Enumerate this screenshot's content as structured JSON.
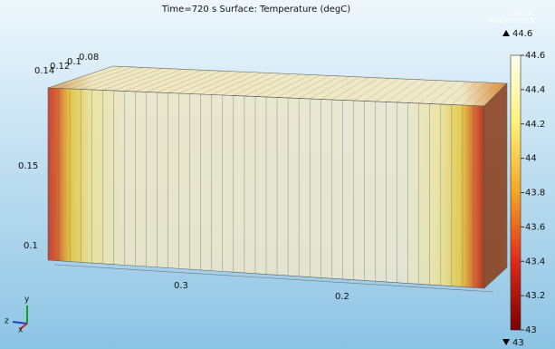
{
  "title": "Time=720 s   Surface: Temperature (degC)",
  "logo": [
    "COMSOL",
    "MULTIPHYSICS"
  ],
  "colorbar": {
    "max": 44.6,
    "min": 43,
    "ticks": [
      44.6,
      44.4,
      44.2,
      44,
      43.8,
      43.6,
      43.4,
      43.2,
      43
    ]
  },
  "axes": {
    "depth_ticks": [
      0.14,
      0.12,
      0.1,
      0.08
    ],
    "height_ticks": [
      0.15,
      0.1
    ],
    "width_ticks": [
      0.3,
      0.2
    ]
  },
  "triad": [
    "x",
    "y",
    "z"
  ]
}
